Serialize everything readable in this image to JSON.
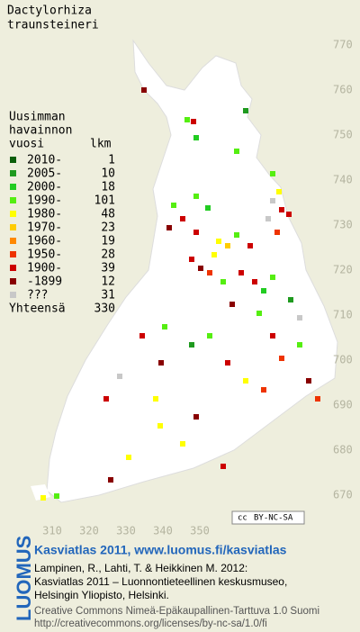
{
  "title_lines": [
    "Dactylorhiza",
    "traunsteineri"
  ],
  "legend": {
    "heading_lines": [
      "Uusimman",
      "havainnon"
    ],
    "year_header": "vuosi",
    "count_header": "lkm",
    "rows": [
      {
        "label": "2010-",
        "count": 1,
        "color": "#0b5e0b"
      },
      {
        "label": "2005-",
        "count": 10,
        "color": "#1f9a1f"
      },
      {
        "label": "2000-",
        "count": 18,
        "color": "#22cc22"
      },
      {
        "label": "1990-",
        "count": 101,
        "color": "#55ee11"
      },
      {
        "label": "1980-",
        "count": 48,
        "color": "#ffff00"
      },
      {
        "label": "1970-",
        "count": 23,
        "color": "#ffcc00"
      },
      {
        "label": "1960-",
        "count": 19,
        "color": "#ff8800"
      },
      {
        "label": "1950-",
        "count": 28,
        "color": "#ee3300"
      },
      {
        "label": "1900-",
        "count": 39,
        "color": "#cc0000"
      },
      {
        "label": "-1899",
        "count": 12,
        "color": "#880000"
      },
      {
        "label": "???",
        "count": 31,
        "color": "#c8c8c8"
      }
    ],
    "total_label": "Yhteensä",
    "total": 330
  },
  "grid": {
    "northing_labels": [
      770,
      760,
      750,
      740,
      730,
      720,
      710,
      700,
      690,
      680,
      670
    ],
    "easting_labels": [
      310,
      320,
      330,
      340,
      350
    ]
  },
  "license_badge": {
    "cc": "cc",
    "terms": "BY-NC-SA"
  },
  "footer": {
    "brand": "LUOMUS",
    "headline": "Kasviatlas 2011, www.luomus.fi/kasviatlas",
    "citation_lines": [
      "Lampinen, R., Lahti, T. & Heikkinen M. 2012:",
      "Kasviatlas 2011 – Luonnontieteellinen keskusmuseo,",
      "Helsingin Yliopisto, Helsinki."
    ],
    "license_lines": [
      "Creative Commons Nimeä-Epäkaupallinen-Tarttuva 1.0 Suomi",
      "http://creativecommons.org/licenses/by-nc-sa/1.0/fi"
    ]
  }
}
